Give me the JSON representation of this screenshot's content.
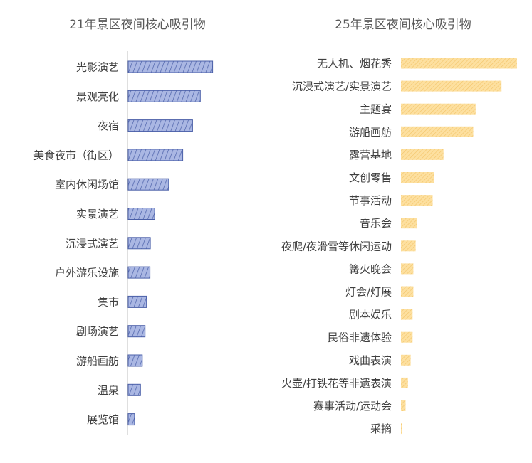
{
  "chart_data": [
    {
      "type": "bar",
      "orientation": "horizontal",
      "title": "21年景区夜间核心吸引物",
      "categories": [
        "光影演艺",
        "景观亮化",
        "夜宿",
        "美食夜市（街区）",
        "室内休闲场馆",
        "实景演艺",
        "沉浸式演艺",
        "户外游乐设施",
        "集市",
        "剧场演艺",
        "游船画舫",
        "温泉",
        "展览馆"
      ],
      "values": [
        24,
        20.5,
        18.3,
        15.5,
        11.5,
        7.5,
        6.3,
        6.2,
        5.2,
        4.8,
        4.0,
        3.5,
        1.8
      ],
      "color": "#4a5fa8",
      "fill": "#aab7e3",
      "axis_line": true,
      "grid": false,
      "legend": "none"
    },
    {
      "type": "bar",
      "orientation": "horizontal",
      "title": "25年景区夜间核心吸引物",
      "categories": [
        "无人机、烟花秀",
        "沉浸式演艺/实景演艺",
        "主题宴",
        "游船画舫",
        "露营基地",
        "文创零售",
        "节事活动",
        "音乐会",
        "夜爬/夜滑雪等休闲运动",
        "篝火晚会",
        "灯会/灯展",
        "剧本娱乐",
        "民俗非遗体验",
        "戏曲表演",
        "火壶/打铁花等非遗表演",
        "赛事活动/运动会",
        "采摘"
      ],
      "values": [
        30,
        26,
        19.3,
        18.7,
        11,
        8.5,
        8.2,
        4.2,
        3.8,
        3.2,
        3.2,
        3.0,
        3.0,
        2.5,
        1.8,
        1.2,
        0.3
      ],
      "color": "#f5c060",
      "fill": "#fde6b0",
      "axis_line": false,
      "grid": false,
      "legend": "none"
    }
  ]
}
